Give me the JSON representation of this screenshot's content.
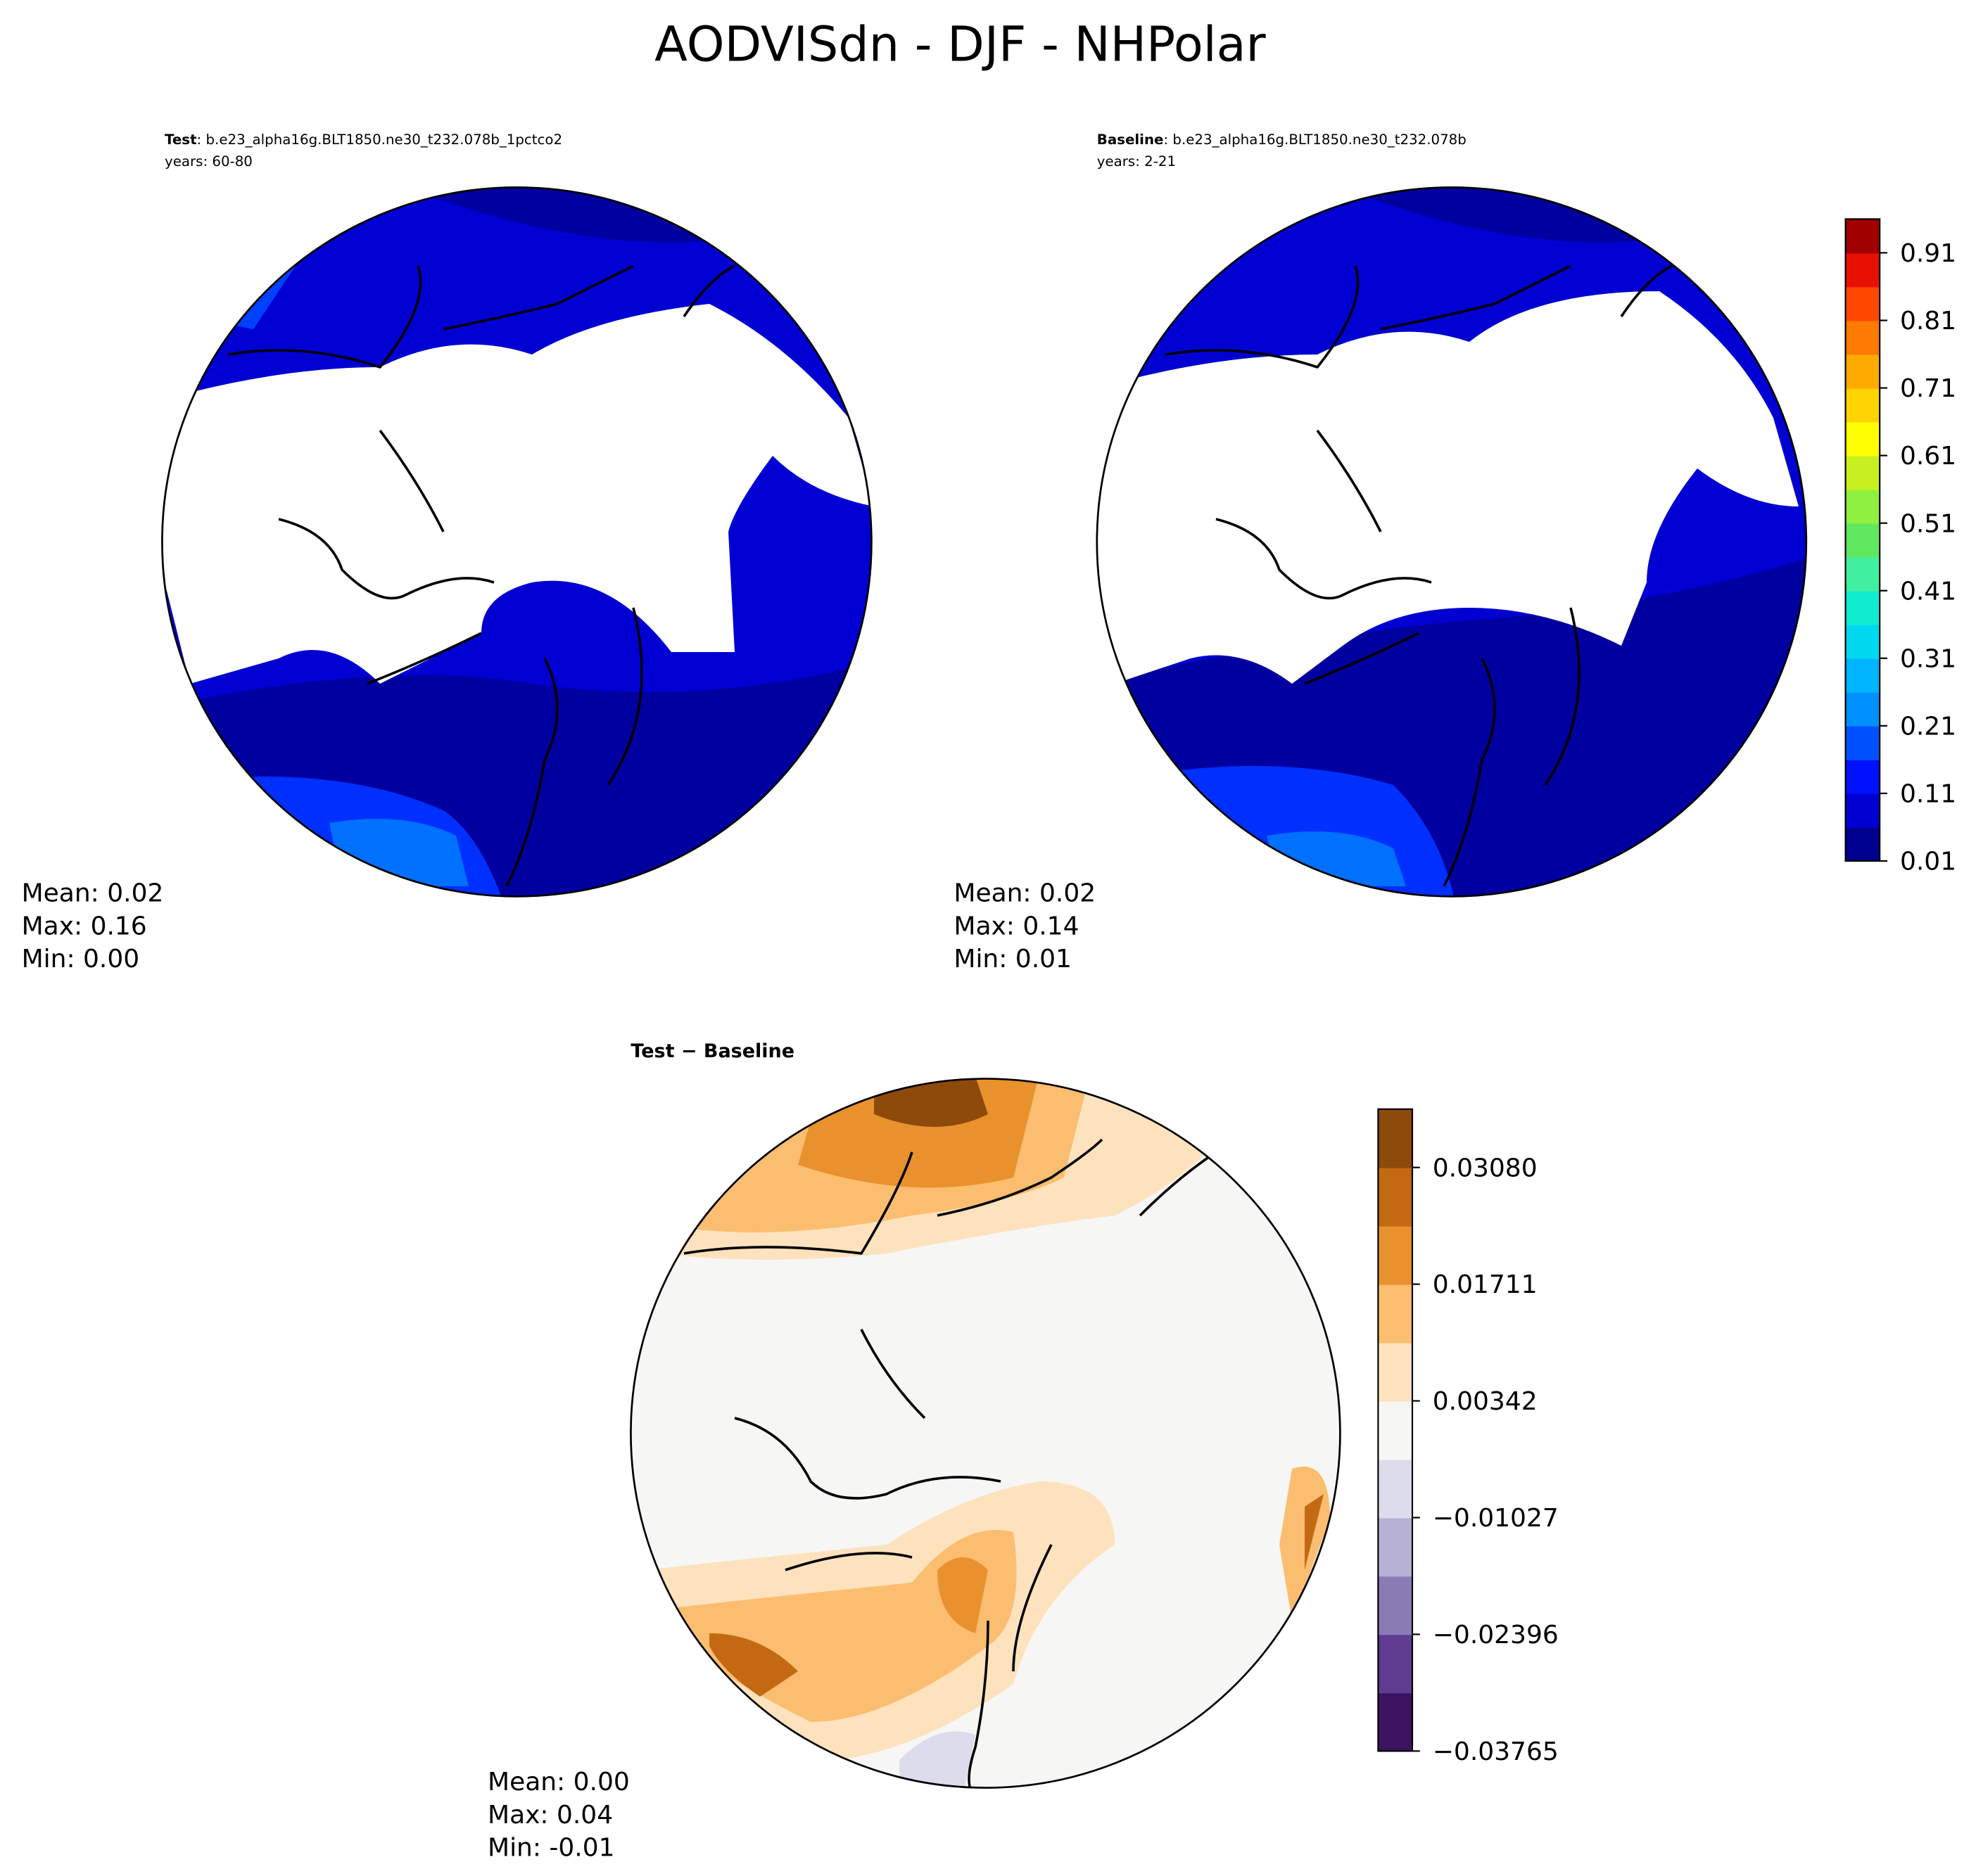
{
  "title": "AODVISdn - DJF - NHPolar",
  "panels": [
    {
      "name": "Test",
      "case": ": b.e23_alpha16g.BLT1850.ne30_t232.078b_1pctco2",
      "years": "years: 60-80",
      "stats": [
        "Mean:  0.02",
        "Max:  0.16",
        "Min:  0.00"
      ]
    },
    {
      "name": "Baseline",
      "case": ": b.e23_alpha16g.BLT1850.ne30_t232.078b",
      "years": "years: 2-21",
      "stats": [
        "Mean:  0.02",
        "Max:  0.14",
        "Min:  0.01"
      ]
    },
    {
      "name": "Test − Baseline",
      "stats": [
        "Mean:  0.00",
        "Max:  0.04",
        "Min: -0.01"
      ]
    }
  ],
  "colorbars": [
    {
      "colors": [
        "#00008f",
        "#0000d0",
        "#0010ff",
        "#0050ff",
        "#0090ff",
        "#00b4ff",
        "#00d8f0",
        "#10ecd0",
        "#40f0a0",
        "#60e860",
        "#90f040",
        "#c8f020",
        "#ffff00",
        "#ffd400",
        "#ffaa00",
        "#ff7a00",
        "#ff4800",
        "#e81000",
        "#a00000"
      ],
      "ticks": [
        "0.01",
        "0.11",
        "0.21",
        "0.31",
        "0.41",
        "0.51",
        "0.61",
        "0.71",
        "0.81",
        "0.91"
      ]
    },
    {
      "colors": [
        "#3d1360",
        "#5e3c8f",
        "#8a7bb5",
        "#b7b1d4",
        "#dcdcec",
        "#f6f6f4",
        "#fde2bd",
        "#fbbd6f",
        "#e9912d",
        "#c46913",
        "#8e4a0b"
      ],
      "ticks": [
        "−0.03765",
        "−0.02396",
        "−0.01027",
        "0.00342",
        "0.01711",
        "0.03080"
      ]
    }
  ]
}
